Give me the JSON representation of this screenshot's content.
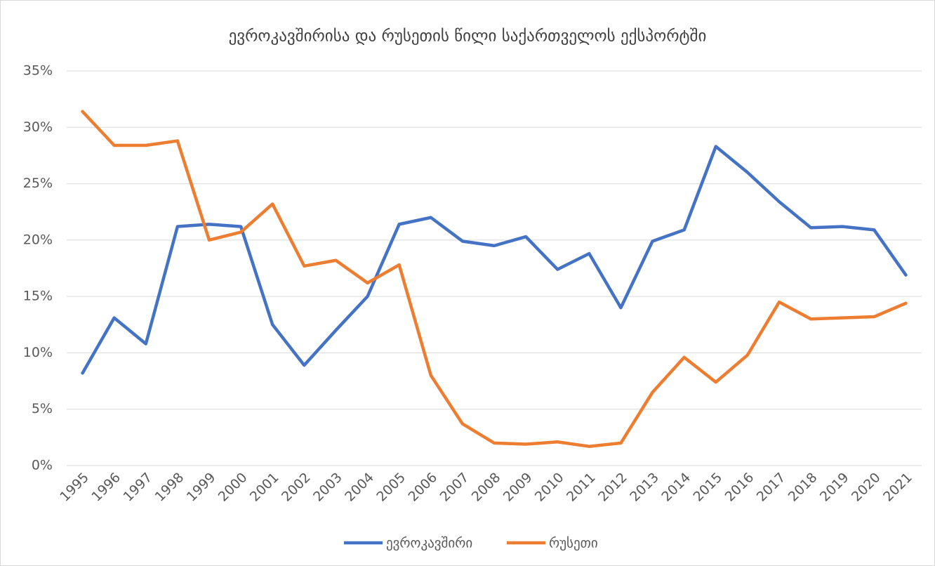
{
  "chart_data": {
    "type": "line",
    "title": "ევროკავშირისა და რუსეთის წილი საქართველოს ექსპორტში",
    "categories": [
      "1995",
      "1996",
      "1997",
      "1998",
      "1999",
      "2000",
      "2001",
      "2002",
      "2003",
      "2004",
      "2005",
      "2006",
      "2007",
      "2008",
      "2009",
      "2010",
      "2011",
      "2012",
      "2013",
      "2014",
      "2015",
      "2016",
      "2017",
      "2018",
      "2019",
      "2020",
      "2021"
    ],
    "series": [
      {
        "name": "ევროკავშირი",
        "color": "#4472c4",
        "values": [
          8.2,
          13.1,
          10.8,
          21.2,
          21.4,
          21.2,
          12.5,
          8.9,
          12.0,
          15.0,
          21.4,
          22.0,
          19.9,
          19.5,
          20.3,
          17.4,
          18.8,
          14.0,
          19.9,
          20.9,
          28.3,
          26.0,
          23.4,
          21.1,
          21.2,
          20.9,
          16.9
        ]
      },
      {
        "name": "რუსეთი",
        "color": "#ed7d31",
        "values": [
          31.4,
          28.4,
          28.4,
          28.8,
          20.0,
          20.7,
          23.2,
          17.7,
          18.2,
          16.2,
          17.8,
          8.0,
          3.7,
          2.0,
          1.9,
          2.1,
          1.7,
          2.0,
          6.5,
          9.6,
          7.4,
          9.8,
          14.5,
          13.0,
          13.1,
          13.2,
          14.4
        ]
      }
    ],
    "ylim": [
      0,
      35
    ],
    "yticks": [
      {
        "value": 0,
        "label": "0%"
      },
      {
        "value": 5,
        "label": "5%"
      },
      {
        "value": 10,
        "label": "10%"
      },
      {
        "value": 15,
        "label": "15%"
      },
      {
        "value": 20,
        "label": "20%"
      },
      {
        "value": 25,
        "label": "25%"
      },
      {
        "value": 30,
        "label": "30%"
      },
      {
        "value": 35,
        "label": "35%"
      }
    ],
    "grid": true,
    "legend": "bottom"
  }
}
